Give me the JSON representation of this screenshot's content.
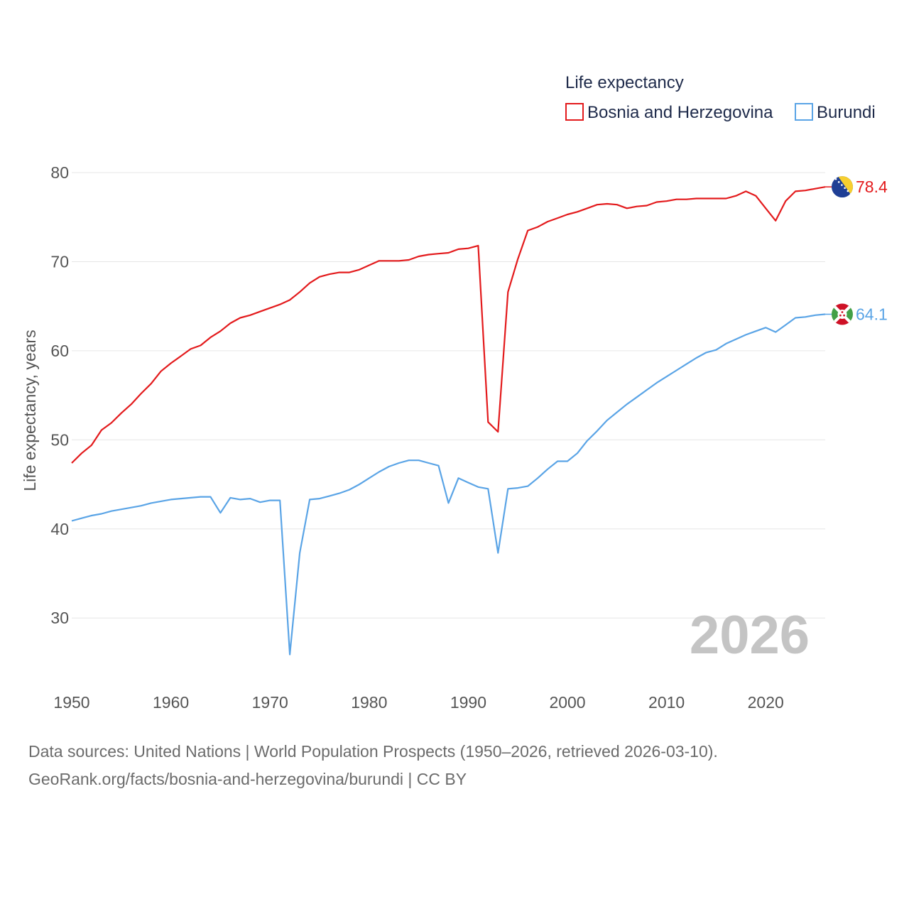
{
  "chart_data": {
    "type": "line",
    "title": "Life expectancy",
    "xlabel": "",
    "ylabel": "Life expectancy, years",
    "xlim": [
      1950,
      2026
    ],
    "ylim": [
      23,
      82
    ],
    "x_ticks": [
      1950,
      1960,
      1970,
      1980,
      1990,
      2000,
      2010,
      2020
    ],
    "y_ticks": [
      30,
      40,
      50,
      60,
      70,
      80
    ],
    "grid": true,
    "legend_position": "top-right",
    "watermark_year": "2026",
    "x": [
      1950,
      1951,
      1952,
      1953,
      1954,
      1955,
      1956,
      1957,
      1958,
      1959,
      1960,
      1961,
      1962,
      1963,
      1964,
      1965,
      1966,
      1967,
      1968,
      1969,
      1970,
      1971,
      1972,
      1973,
      1974,
      1975,
      1976,
      1977,
      1978,
      1979,
      1980,
      1981,
      1982,
      1983,
      1984,
      1985,
      1986,
      1987,
      1988,
      1989,
      1990,
      1991,
      1992,
      1993,
      1994,
      1995,
      1996,
      1997,
      1998,
      1999,
      2000,
      2001,
      2002,
      2003,
      2004,
      2005,
      2006,
      2007,
      2008,
      2009,
      2010,
      2011,
      2012,
      2013,
      2014,
      2015,
      2016,
      2017,
      2018,
      2019,
      2020,
      2021,
      2022,
      2023,
      2024,
      2025,
      2026
    ],
    "series": [
      {
        "name": "Bosnia and Herzegovina",
        "color": "#e31a1c",
        "end_label": "78.4",
        "flag": "bosnia-flag",
        "values": [
          47.4,
          48.5,
          49.4,
          51.1,
          51.9,
          53.0,
          54.0,
          55.2,
          56.3,
          57.7,
          58.6,
          59.4,
          60.2,
          60.6,
          61.5,
          62.2,
          63.1,
          63.7,
          64.0,
          64.4,
          64.8,
          65.2,
          65.7,
          66.6,
          67.6,
          68.3,
          68.6,
          68.8,
          68.8,
          69.1,
          69.6,
          70.1,
          70.1,
          70.1,
          70.2,
          70.6,
          70.8,
          70.9,
          71.0,
          71.4,
          71.5,
          71.8,
          52.0,
          50.9,
          66.6,
          70.3,
          73.5,
          73.9,
          74.5,
          74.9,
          75.3,
          75.6,
          76.0,
          76.4,
          76.5,
          76.4,
          76.0,
          76.2,
          76.3,
          76.7,
          76.8,
          77.0,
          77.0,
          77.1,
          77.1,
          77.1,
          77.1,
          77.4,
          77.9,
          77.4,
          76.0,
          74.6,
          76.8,
          77.9,
          78.0,
          78.2,
          78.4
        ]
      },
      {
        "name": "Burundi",
        "color": "#5aa4e6",
        "end_label": "64.1",
        "flag": "burundi-flag",
        "values": [
          40.9,
          41.2,
          41.5,
          41.7,
          42.0,
          42.2,
          42.4,
          42.6,
          42.9,
          43.1,
          43.3,
          43.4,
          43.5,
          43.6,
          43.6,
          41.8,
          43.5,
          43.3,
          43.4,
          43.0,
          43.2,
          43.2,
          25.9,
          37.3,
          43.3,
          43.4,
          43.7,
          44.0,
          44.4,
          45.0,
          45.7,
          46.4,
          47.0,
          47.4,
          47.7,
          47.7,
          47.4,
          47.1,
          42.9,
          45.7,
          45.2,
          44.7,
          44.5,
          37.3,
          44.5,
          44.6,
          44.8,
          45.7,
          46.7,
          47.6,
          47.6,
          48.5,
          49.9,
          51.0,
          52.2,
          53.1,
          54.0,
          54.8,
          55.6,
          56.4,
          57.1,
          57.8,
          58.5,
          59.2,
          59.8,
          60.1,
          60.8,
          61.3,
          61.8,
          62.2,
          62.6,
          62.1,
          62.9,
          63.7,
          63.8,
          64.0,
          64.1
        ]
      }
    ]
  },
  "footer": {
    "sources": "Data sources: United Nations | World Population Prospects (1950–2026, retrieved 2026-03-10).",
    "link": "GeoRank.org/facts/bosnia-and-herzegovina/burundi | CC BY"
  }
}
